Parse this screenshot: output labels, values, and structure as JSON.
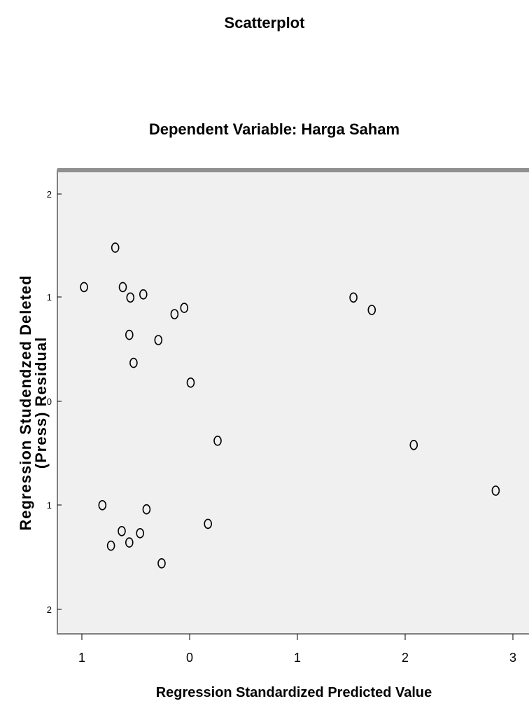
{
  "chart_data": {
    "type": "scatter",
    "title": "Scatterplot",
    "subtitle": "Dependent Variable: Harga Saham",
    "xlabel": "Regression Standardized Predicted Value",
    "ylabel_line1": "Regression Studendzed Deleted",
    "ylabel_line2": "(Press) Residual",
    "xlim": [
      -1,
      3
    ],
    "ylim": [
      -2,
      2
    ],
    "x_ticks": [
      {
        "value": -1,
        "label": "1"
      },
      {
        "value": 0,
        "label": "0"
      },
      {
        "value": 1,
        "label": "1"
      },
      {
        "value": 2,
        "label": "2"
      },
      {
        "value": 3,
        "label": "3"
      }
    ],
    "y_ticks": [
      {
        "value": 2,
        "label": "2"
      },
      {
        "value": 1,
        "label": "1"
      },
      {
        "value": 0,
        "label": "0"
      },
      {
        "value": -1,
        "label": "1"
      },
      {
        "value": -2,
        "label": "2"
      }
    ],
    "grid": false,
    "plot_background": "#f0f0f0",
    "frame_color": "#808080",
    "points": [
      {
        "x": -0.98,
        "y": 1.1
      },
      {
        "x": -0.69,
        "y": 1.48
      },
      {
        "x": -0.62,
        "y": 1.1
      },
      {
        "x": -0.55,
        "y": 1.0
      },
      {
        "x": -0.43,
        "y": 1.03
      },
      {
        "x": -0.56,
        "y": 0.64
      },
      {
        "x": -0.29,
        "y": 0.59
      },
      {
        "x": -0.14,
        "y": 0.84
      },
      {
        "x": -0.05,
        "y": 0.9
      },
      {
        "x": -0.52,
        "y": 0.37
      },
      {
        "x": 0.01,
        "y": 0.18
      },
      {
        "x": 0.26,
        "y": -0.38
      },
      {
        "x": 1.52,
        "y": 1.0
      },
      {
        "x": 1.69,
        "y": 0.88
      },
      {
        "x": 2.08,
        "y": -0.42
      },
      {
        "x": 2.84,
        "y": -0.86
      },
      {
        "x": -0.81,
        "y": -1.0
      },
      {
        "x": -0.4,
        "y": -1.04
      },
      {
        "x": -0.63,
        "y": -1.25
      },
      {
        "x": -0.46,
        "y": -1.27
      },
      {
        "x": -0.56,
        "y": -1.36
      },
      {
        "x": -0.73,
        "y": -1.39
      },
      {
        "x": 0.17,
        "y": -1.18
      },
      {
        "x": -0.26,
        "y": -1.56
      }
    ]
  }
}
